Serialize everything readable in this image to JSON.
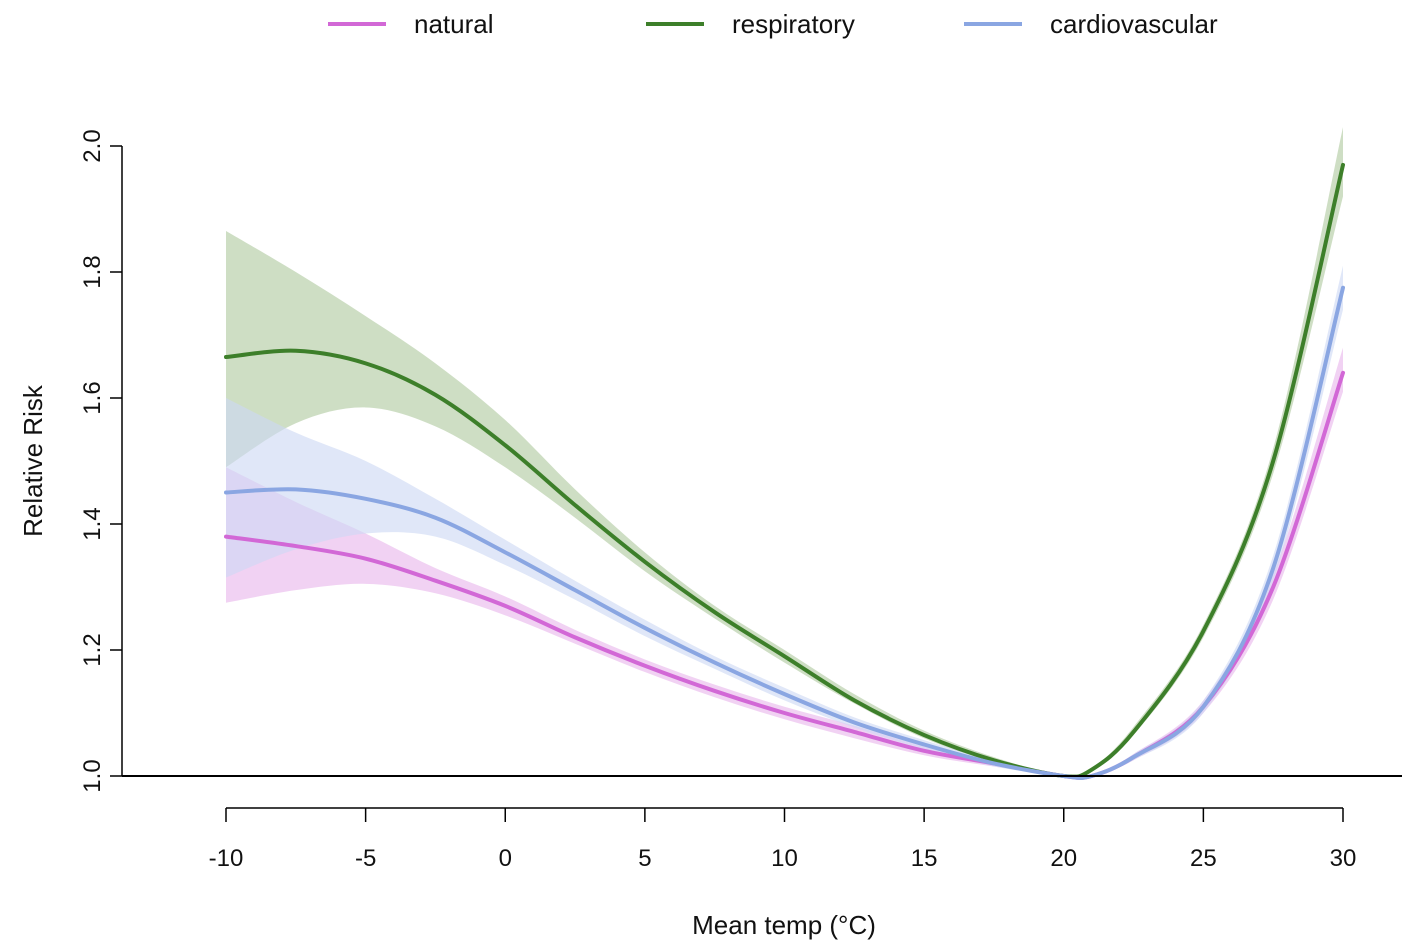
{
  "chart_data": {
    "type": "line",
    "xlabel": "Mean temp (°C)",
    "ylabel": "Relative Risk",
    "xlim": [
      -10,
      30
    ],
    "ylim": [
      1.0,
      2.0
    ],
    "x_ticks": [
      -10,
      -5,
      0,
      5,
      10,
      15,
      20,
      25,
      30
    ],
    "x_tick_labels": [
      "-10",
      "-5",
      "0",
      "5",
      "10",
      "15",
      "20",
      "25",
      "30"
    ],
    "y_ticks": [
      1.0,
      1.2,
      1.4,
      1.6,
      1.8,
      2.0
    ],
    "y_tick_labels": [
      "1.0",
      "1.2",
      "1.4",
      "1.6",
      "1.8",
      "2.0"
    ],
    "legend_position": "top",
    "grid": false,
    "x": [
      -10,
      -7.5,
      -5,
      -2.5,
      0,
      2.5,
      5,
      7.5,
      10,
      12.5,
      15,
      17.5,
      20,
      21,
      22.5,
      25,
      27.5,
      30
    ],
    "series": [
      {
        "name": "natural",
        "color": "#d268d6",
        "band_color": "#e9b6ec",
        "values": [
          1.38,
          1.365,
          1.345,
          1.31,
          1.27,
          1.22,
          1.175,
          1.135,
          1.1,
          1.07,
          1.04,
          1.02,
          1.0,
          1.0,
          1.03,
          1.11,
          1.3,
          1.64
        ],
        "lower": [
          1.275,
          1.295,
          1.305,
          1.29,
          1.255,
          1.21,
          1.165,
          1.125,
          1.09,
          1.06,
          1.033,
          1.015,
          1.0,
          1.0,
          1.025,
          1.1,
          1.28,
          1.61
        ],
        "upper": [
          1.49,
          1.435,
          1.385,
          1.33,
          1.285,
          1.232,
          1.185,
          1.145,
          1.11,
          1.08,
          1.047,
          1.025,
          1.0,
          1.0,
          1.035,
          1.12,
          1.32,
          1.68
        ]
      },
      {
        "name": "respiratory",
        "color": "#3d7f2a",
        "band_color": "#b0c99f",
        "values": [
          1.665,
          1.675,
          1.655,
          1.605,
          1.525,
          1.43,
          1.34,
          1.26,
          1.19,
          1.12,
          1.065,
          1.025,
          1.0,
          1.01,
          1.07,
          1.23,
          1.5,
          1.97
        ],
        "lower": [
          1.49,
          1.56,
          1.585,
          1.555,
          1.49,
          1.41,
          1.325,
          1.25,
          1.18,
          1.115,
          1.06,
          1.022,
          1.0,
          1.008,
          1.065,
          1.22,
          1.48,
          1.92
        ],
        "upper": [
          1.865,
          1.8,
          1.73,
          1.655,
          1.565,
          1.455,
          1.355,
          1.27,
          1.2,
          1.13,
          1.072,
          1.03,
          1.0,
          1.012,
          1.078,
          1.24,
          1.52,
          2.03
        ]
      },
      {
        "name": "cardiovascular",
        "color": "#8aa6e2",
        "band_color": "#cdd8f3",
        "values": [
          1.45,
          1.455,
          1.44,
          1.41,
          1.355,
          1.295,
          1.235,
          1.18,
          1.13,
          1.085,
          1.05,
          1.02,
          1.0,
          1.0,
          1.03,
          1.11,
          1.33,
          1.775
        ],
        "lower": [
          1.315,
          1.36,
          1.385,
          1.38,
          1.335,
          1.28,
          1.222,
          1.17,
          1.12,
          1.077,
          1.043,
          1.015,
          1.0,
          1.0,
          1.025,
          1.1,
          1.31,
          1.74
        ],
        "upper": [
          1.6,
          1.545,
          1.5,
          1.44,
          1.375,
          1.31,
          1.248,
          1.19,
          1.14,
          1.093,
          1.057,
          1.025,
          1.0,
          1.0,
          1.035,
          1.12,
          1.35,
          1.81
        ]
      }
    ]
  }
}
